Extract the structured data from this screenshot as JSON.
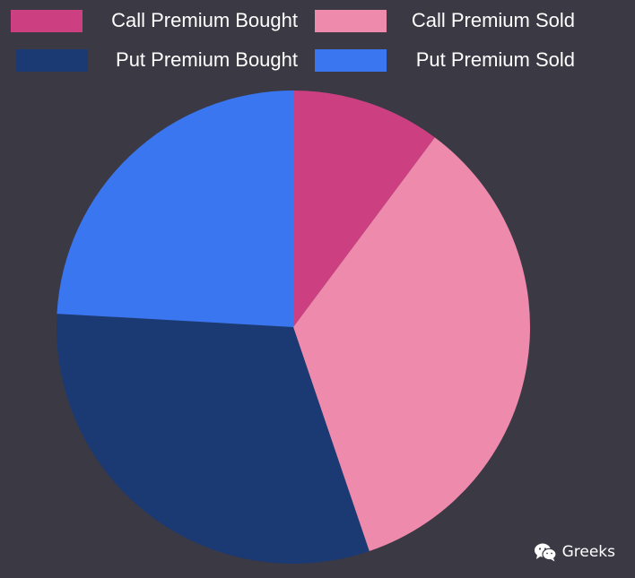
{
  "chart_data": {
    "type": "pie",
    "categories": [
      "Call Premium Bought",
      "Call Premium Sold",
      "Put Premium Bought",
      "Put Premium Sold"
    ],
    "values": [
      10.2,
      34.6,
      31.1,
      24.1
    ],
    "colors": [
      "#cc4081",
      "#ee8aac",
      "#1b3a74",
      "#3a76f0"
    ],
    "title": "",
    "legend_position": "top",
    "start_angle_deg": 0,
    "direction": "clockwise"
  },
  "watermark": {
    "icon": "wechat-icon",
    "text": "Greeks"
  },
  "colors": {
    "background": "#3a3944",
    "legend_text": "#ffffff"
  }
}
